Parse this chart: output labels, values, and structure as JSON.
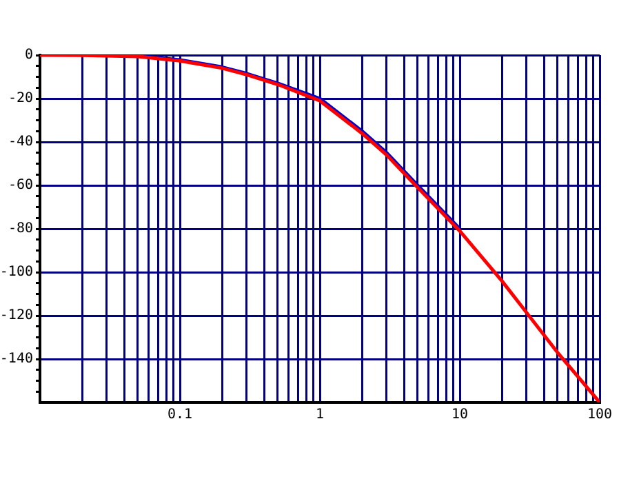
{
  "chart_data": {
    "type": "line",
    "x": [
      0.01,
      0.02,
      0.05,
      0.1,
      0.2,
      0.3,
      0.5,
      1,
      2,
      3,
      5,
      10,
      20,
      50,
      100
    ],
    "series": [
      {
        "color": "#0000cc",
        "values": [
          null,
          null,
          -0.4,
          -2.2,
          -5.5,
          -8.5,
          -13,
          -20,
          -35,
          -45,
          -60,
          -80,
          null,
          null,
          null
        ]
      },
      {
        "color": "#ff0000",
        "values": [
          0,
          -0.1,
          -0.6,
          -2.6,
          -6,
          -9,
          -13.5,
          -21,
          -36,
          -46,
          -61,
          -81,
          -104,
          -137,
          -160
        ]
      }
    ],
    "log": "x",
    "xlim": [
      0.01,
      100
    ],
    "ylim": [
      -160,
      0
    ],
    "xticks": [
      {
        "value": 0.02,
        "label": null
      },
      {
        "value": 0.03,
        "label": null
      },
      {
        "value": 0.04,
        "label": null
      },
      {
        "value": 0.05,
        "label": null
      },
      {
        "value": 0.06,
        "label": null
      },
      {
        "value": 0.07,
        "label": null
      },
      {
        "value": 0.08,
        "label": null
      },
      {
        "value": 0.09,
        "label": null
      },
      0.1,
      {
        "value": 0.2,
        "label": null
      },
      {
        "value": 0.3,
        "label": null
      },
      {
        "value": 0.4,
        "label": null
      },
      {
        "value": 0.5,
        "label": null
      },
      {
        "value": 0.6,
        "label": null
      },
      {
        "value": 0.7,
        "label": null
      },
      {
        "value": 0.8,
        "label": null
      },
      {
        "value": 0.9,
        "label": null
      },
      1,
      {
        "value": 2,
        "label": null
      },
      {
        "value": 3,
        "label": null
      },
      {
        "value": 4,
        "label": null
      },
      {
        "value": 5,
        "label": null
      },
      {
        "value": 6,
        "label": null
      },
      {
        "value": 7,
        "label": null
      },
      {
        "value": 8,
        "label": null
      },
      {
        "value": 9,
        "label": null
      },
      10,
      {
        "value": 20,
        "label": null
      },
      {
        "value": 30,
        "label": null
      },
      {
        "value": 40,
        "label": null
      },
      {
        "value": 50,
        "label": null
      },
      {
        "value": 60,
        "label": null
      },
      {
        "value": 70,
        "label": null
      },
      {
        "value": 80,
        "label": null
      },
      {
        "value": 90,
        "label": null
      },
      100
    ],
    "yticks": [
      0,
      {
        "value": -5,
        "label": null
      },
      {
        "value": -10,
        "label": null
      },
      {
        "value": -15,
        "label": null
      },
      -20,
      {
        "value": -25,
        "label": null
      },
      {
        "value": -30,
        "label": null
      },
      {
        "value": -35,
        "label": null
      },
      -40,
      {
        "value": -45,
        "label": null
      },
      {
        "value": -50,
        "label": null
      },
      {
        "value": -55,
        "label": null
      },
      -60,
      {
        "value": -65,
        "label": null
      },
      {
        "value": -70,
        "label": null
      },
      {
        "value": -75,
        "label": null
      },
      -80,
      {
        "value": -85,
        "label": null
      },
      {
        "value": -90,
        "label": null
      },
      {
        "value": -95,
        "label": null
      },
      -100,
      {
        "value": -105,
        "label": null
      },
      {
        "value": -110,
        "label": null
      },
      {
        "value": -115,
        "label": null
      },
      -120,
      {
        "value": -125,
        "label": null
      },
      {
        "value": -130,
        "label": null
      },
      {
        "value": -135,
        "label": null
      },
      -140,
      {
        "value": -145,
        "label": null
      },
      {
        "value": -150,
        "label": null
      },
      {
        "value": -155,
        "label": null
      }
    ],
    "grid": true,
    "legend": false,
    "marker": "none",
    "line_style": "solid"
  }
}
